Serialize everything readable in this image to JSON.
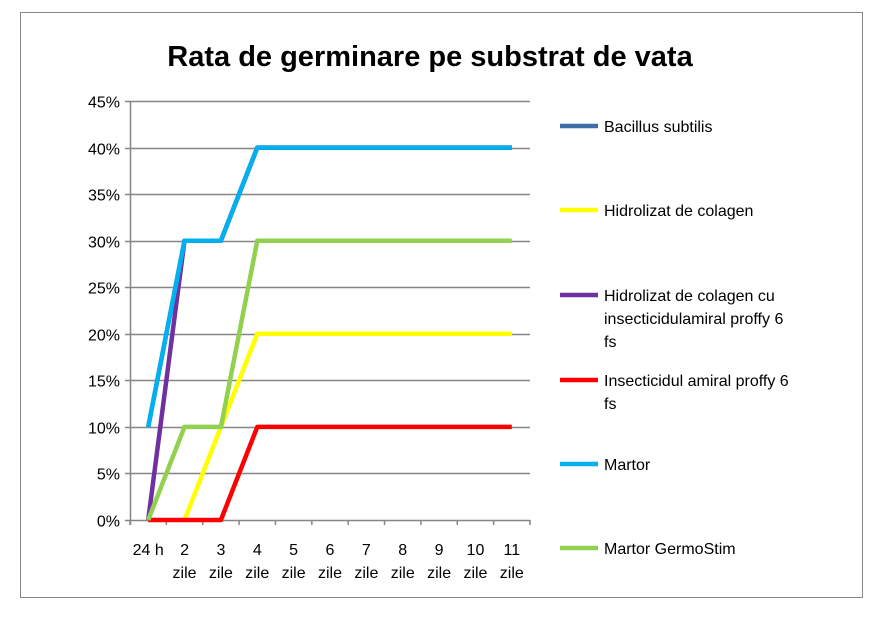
{
  "chart_data": {
    "type": "line",
    "title": "Rata de germinare pe substrat de vata",
    "xlabel": "",
    "ylabel": "",
    "ylim": [
      0,
      45
    ],
    "yticks": [
      "0%",
      "5%",
      "10%",
      "15%",
      "20%",
      "25%",
      "30%",
      "35%",
      "40%",
      "45%"
    ],
    "categories": [
      [
        "24 h",
        ""
      ],
      [
        "2",
        "zile"
      ],
      [
        "3",
        "zile"
      ],
      [
        "4",
        "zile"
      ],
      [
        "5",
        "zile"
      ],
      [
        "6",
        "zile"
      ],
      [
        "7",
        "zile"
      ],
      [
        "8",
        "zile"
      ],
      [
        "9",
        "zile"
      ],
      [
        "10",
        "zile"
      ],
      [
        "11",
        "zile"
      ]
    ],
    "grid": true,
    "legend_position": "right",
    "series": [
      {
        "name": "Bacillus subtilis",
        "label_lines": [
          "Bacillus subtilis"
        ],
        "color": "#3A6EA5",
        "values": [
          10,
          30,
          30,
          40,
          40,
          40,
          40,
          40,
          40,
          40,
          40
        ]
      },
      {
        "name": "Hidrolizat de colagen",
        "label_lines": [
          "Hidrolizat de colagen"
        ],
        "color": "#FFFF00",
        "values": [
          null,
          0,
          10,
          20,
          20,
          20,
          20,
          20,
          20,
          20,
          20
        ]
      },
      {
        "name": "Hidrolizat de colagen cu insecticidulamiral proffy 6 fs",
        "label_lines": [
          "Hidrolizat de colagen cu",
          "insecticidulamiral proffy 6",
          "fs"
        ],
        "color": "#7030A0",
        "values": [
          0,
          30,
          30,
          40,
          40,
          40,
          40,
          40,
          40,
          40,
          40
        ]
      },
      {
        "name": "Insecticidul amiral proffy 6 fs",
        "label_lines": [
          "Insecticidul amiral proffy 6",
          "fs"
        ],
        "color": "#FF0000",
        "values": [
          0,
          0,
          0,
          10,
          10,
          10,
          10,
          10,
          10,
          10,
          10
        ]
      },
      {
        "name": "Martor",
        "label_lines": [
          "Martor"
        ],
        "color": "#00B0F0",
        "values": [
          10,
          30,
          30,
          40,
          40,
          40,
          40,
          40,
          40,
          40,
          40
        ]
      },
      {
        "name": "Martor GermoStim",
        "label_lines": [
          "Martor GermoStim"
        ],
        "color": "#92D050",
        "values": [
          0,
          10,
          10,
          30,
          30,
          30,
          30,
          30,
          30,
          30,
          30
        ]
      }
    ]
  }
}
